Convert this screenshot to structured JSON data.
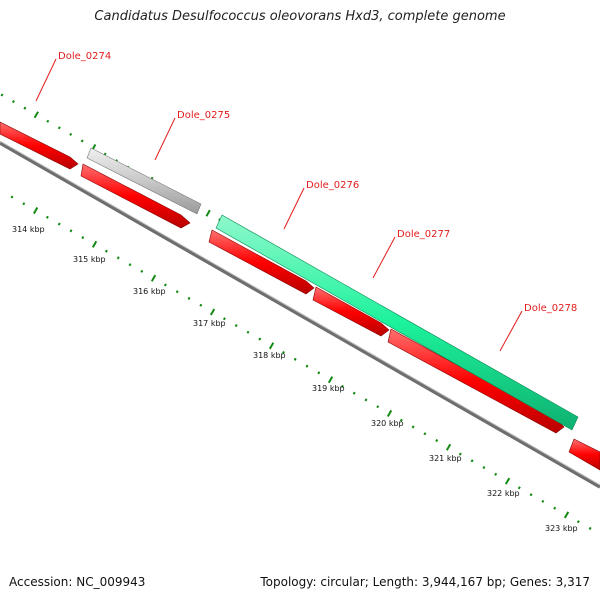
{
  "title": "Candidatus Desulfococcus oleovorans Hxd3, complete genome",
  "accession": "Accession: NC_009943",
  "summary": "Topology: circular; Length: 3,944,167 bp; Genes: 3,317",
  "colors": {
    "cds": "#ff0000",
    "rna": "#1cf29c",
    "pseudo": "#c8c8c8",
    "backbone": "#6e6e6e",
    "ticks": "#138a13",
    "label": "#e41c1c"
  },
  "gene_labels": [
    {
      "id": "gene-label-dole-0274",
      "text": "Dole_0274"
    },
    {
      "id": "gene-label-dole-0275",
      "text": "Dole_0275"
    },
    {
      "id": "gene-label-dole-0276",
      "text": "Dole_0276"
    },
    {
      "id": "gene-label-dole-0277",
      "text": "Dole_0277"
    },
    {
      "id": "gene-label-dole-0278",
      "text": "Dole_0278"
    }
  ],
  "tick_labels": [
    "314 kbp",
    "315 kbp",
    "316 kbp",
    "317 kbp",
    "318 kbp",
    "319 kbp",
    "320 kbp",
    "321 kbp",
    "322 kbp",
    "323 kbp"
  ]
}
